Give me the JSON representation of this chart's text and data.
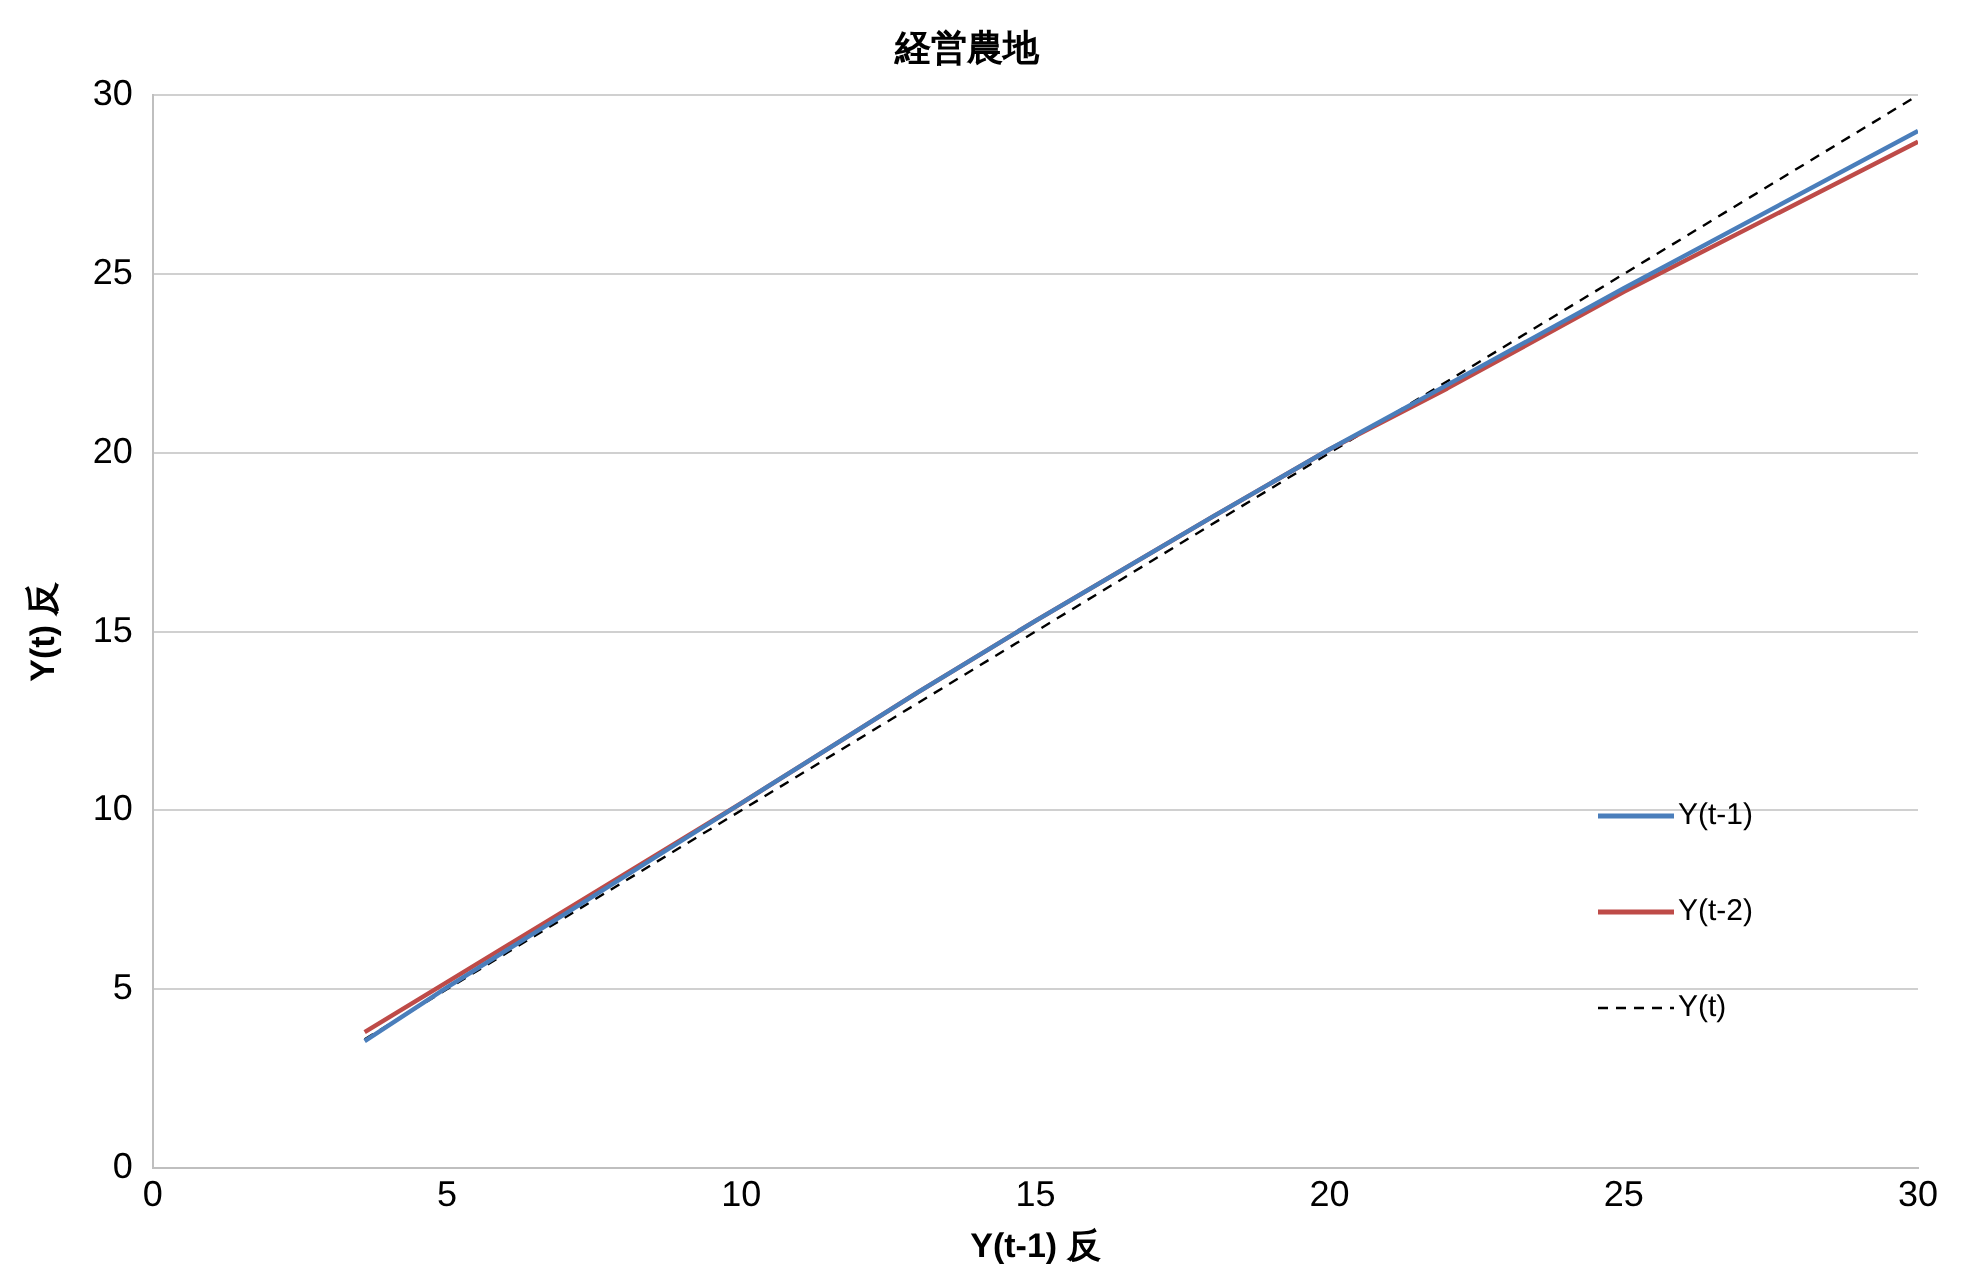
{
  "chart_data": {
    "type": "line",
    "title": "経営農地",
    "xlabel": "Y(t-1) 反",
    "ylabel": "Y(t) 反",
    "xlim": [
      0,
      30
    ],
    "xticks": [
      0,
      5,
      10,
      15,
      20,
      25,
      30
    ],
    "ylim": [
      0,
      30
    ],
    "yticks": [
      0,
      5,
      10,
      15,
      20,
      25,
      30
    ],
    "grid": "y",
    "legend": "right",
    "marker": "none",
    "series": [
      {
        "name": "Y(t-1)",
        "color": "#4a7ebb",
        "line_style": "solid",
        "x": [
          3.6,
          5,
          7,
          10,
          13,
          15,
          18,
          20,
          22,
          25,
          30
        ],
        "values": [
          3.55,
          5.05,
          7.1,
          10.2,
          13.3,
          15.3,
          18.2,
          20.1,
          21.9,
          24.6,
          29.0
        ]
      },
      {
        "name": "Y(t-2)",
        "color": "#be4b48",
        "line_style": "solid",
        "x": [
          3.6,
          5,
          7,
          10,
          13,
          15,
          18,
          20,
          22,
          25,
          30
        ],
        "values": [
          3.8,
          5.2,
          7.2,
          10.2,
          13.3,
          15.3,
          18.2,
          20.1,
          21.8,
          24.5,
          28.7
        ]
      },
      {
        "name": "Y(t)",
        "color": "#000000",
        "line_style": "dashed",
        "x": [
          3.6,
          30
        ],
        "values": [
          3.6,
          30
        ]
      }
    ]
  }
}
